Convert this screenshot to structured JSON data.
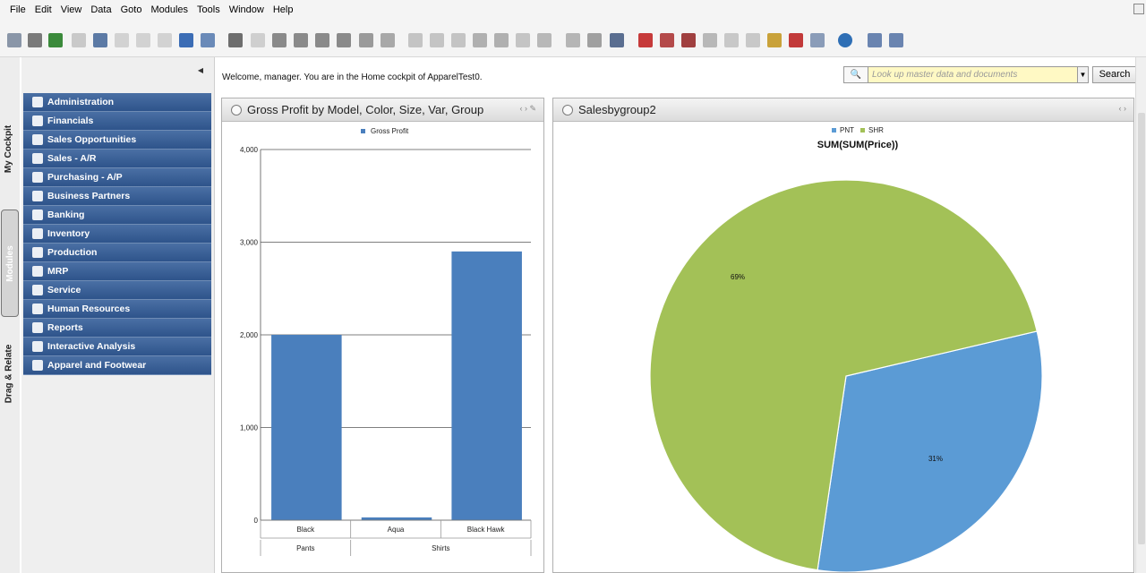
{
  "menu": [
    "File",
    "Edit",
    "View",
    "Data",
    "Goto",
    "Modules",
    "Tools",
    "Window",
    "Help"
  ],
  "side_tabs": [
    "My Cockpit",
    "Modules",
    "Drag & Relate"
  ],
  "nav": {
    "items": [
      "Administration",
      "Financials",
      "Sales Opportunities",
      "Sales - A/R",
      "Purchasing - A/P",
      "Business Partners",
      "Banking",
      "Inventory",
      "Production",
      "MRP",
      "Service",
      "Human Resources",
      "Reports",
      "Interactive Analysis",
      "Apparel and Footwear"
    ]
  },
  "welcome": "Welcome, manager. You are in the Home cockpit of ApparelTest0.",
  "search": {
    "placeholder": "Look up master data and documents",
    "button": "Search"
  },
  "widgets": {
    "bar_title": "Gross Profit by Model, Color, Size, Var, Group",
    "pie_title": "Salesbygroup2"
  },
  "chart_data": [
    {
      "type": "bar",
      "legend": [
        "Gross Profit"
      ],
      "categories": [
        "Black",
        "Aqua",
        "Black Hawk"
      ],
      "groups": [
        {
          "label": "Pants",
          "span": 1
        },
        {
          "label": "Shirts",
          "span": 2
        }
      ],
      "series": [
        {
          "name": "Gross Profit",
          "values": [
            2000,
            30,
            2900
          ]
        }
      ],
      "yticks": [
        "0",
        "1,000",
        "2,000",
        "3,000",
        "4,000"
      ],
      "ylim": [
        0,
        4000
      ],
      "grid": true,
      "color": "#4a7fbd"
    },
    {
      "type": "pie",
      "title": "SUM(SUM(Price))",
      "legend": [
        "PNT",
        "SHR"
      ],
      "slices": [
        {
          "name": "PNT",
          "value": 31,
          "label": "31%",
          "color": "#5b9bd5"
        },
        {
          "name": "SHR",
          "value": 69,
          "label": "69%",
          "color": "#a3c157"
        }
      ]
    }
  ],
  "colors": {
    "nav_bg": "#355a90",
    "accent": "#4a7fbd",
    "pie_green": "#a3c157"
  }
}
